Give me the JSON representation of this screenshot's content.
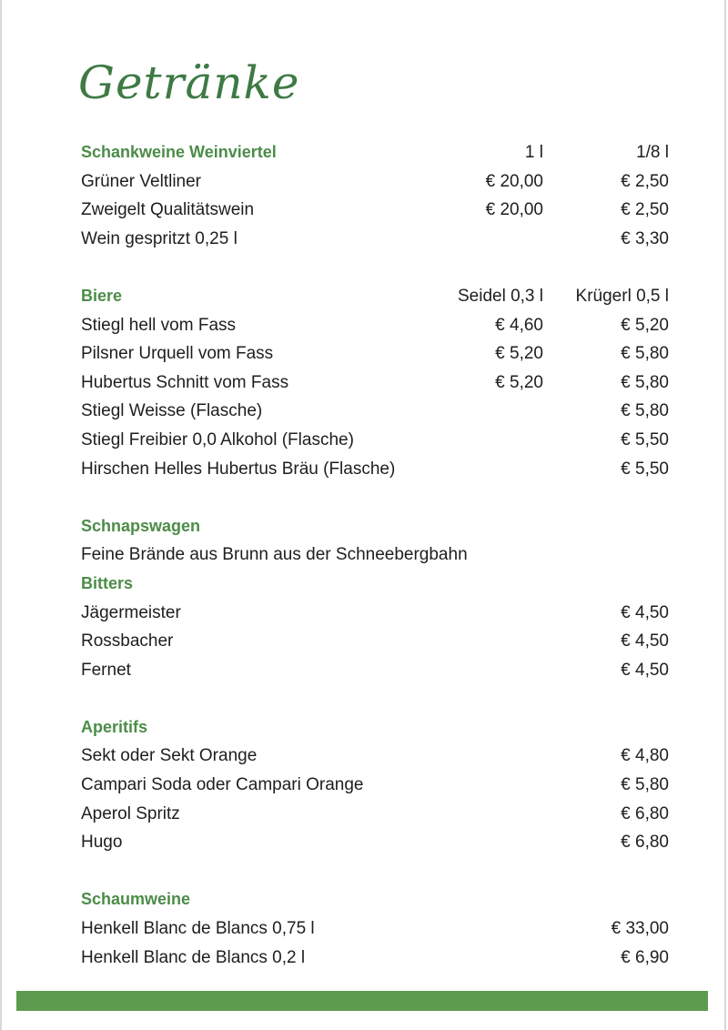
{
  "title": "Getränke",
  "accent_color": "#4c8c48",
  "bar_color": "#5d9b4e",
  "rows": [
    {
      "type": "head",
      "name": "Schankweine Weinviertel",
      "c1": "1 l",
      "c2": "1/8 l",
      "plain_cols": true
    },
    {
      "type": "item",
      "name": "Grüner Veltliner",
      "c1": "€ 20,00",
      "c2": "€ 2,50"
    },
    {
      "type": "item",
      "name": "Zweigelt Qualitätswein",
      "c1": "€ 20,00",
      "c2": "€ 2,50"
    },
    {
      "type": "item",
      "name": "Wein gespritzt 0,25 l",
      "c1": "",
      "c2": "€ 3,30"
    },
    {
      "type": "blank"
    },
    {
      "type": "head",
      "name": "Biere",
      "c1": "Seidel 0,3 l",
      "c2": "Krügerl 0,5 l"
    },
    {
      "type": "item",
      "name": "Stiegl hell vom Fass",
      "c1": "€ 4,60",
      "c2": "€ 5,20"
    },
    {
      "type": "item",
      "name": "Pilsner Urquell vom Fass",
      "c1": "€ 5,20",
      "c2": "€ 5,80"
    },
    {
      "type": "item",
      "name": "Hubertus Schnitt vom Fass",
      "c1": "€ 5,20",
      "c2": "€ 5,80"
    },
    {
      "type": "item",
      "name": "Stiegl Weisse (Flasche)",
      "c1": "",
      "c2": "€ 5,80"
    },
    {
      "type": "item",
      "name": "Stiegl Freibier 0,0 Alkohol (Flasche)",
      "c1": "",
      "c2": "€ 5,50"
    },
    {
      "type": "item",
      "name": "Hirschen Helles Hubertus Bräu (Flasche)",
      "c1": "",
      "c2": "€ 5,50"
    },
    {
      "type": "blank"
    },
    {
      "type": "head",
      "name": "Schnapswagen"
    },
    {
      "type": "item",
      "name": "Feine Brände aus Brunn aus der Schneebergbahn"
    },
    {
      "type": "head",
      "name": "Bitters"
    },
    {
      "type": "item",
      "name": "Jägermeister",
      "c1": "",
      "c2": "€ 4,50"
    },
    {
      "type": "item",
      "name": "Rossbacher",
      "c1": "",
      "c2": "€ 4,50"
    },
    {
      "type": "item",
      "name": "Fernet",
      "c1": "",
      "c2": "€ 4,50"
    },
    {
      "type": "blank"
    },
    {
      "type": "head",
      "name": "Aperitifs"
    },
    {
      "type": "item",
      "name": "Sekt oder Sekt Orange",
      "c1": "",
      "c2": "€ 4,80"
    },
    {
      "type": "item",
      "name": "Campari Soda oder Campari Orange",
      "c1": "",
      "c2": "€ 5,80"
    },
    {
      "type": "item",
      "name": "Aperol Spritz",
      "c1": "",
      "c2": "€ 6,80"
    },
    {
      "type": "item",
      "name": "Hugo",
      "c1": "",
      "c2": "€ 6,80"
    },
    {
      "type": "blank"
    },
    {
      "type": "head",
      "name": "Schaumweine"
    },
    {
      "type": "item",
      "name": "Henkell Blanc de Blancs 0,75 l",
      "c1": "",
      "c2": "€ 33,00"
    },
    {
      "type": "item",
      "name": "Henkell Blanc de Blancs 0,2 l",
      "c1": "",
      "c2": "€ 6,90"
    }
  ]
}
